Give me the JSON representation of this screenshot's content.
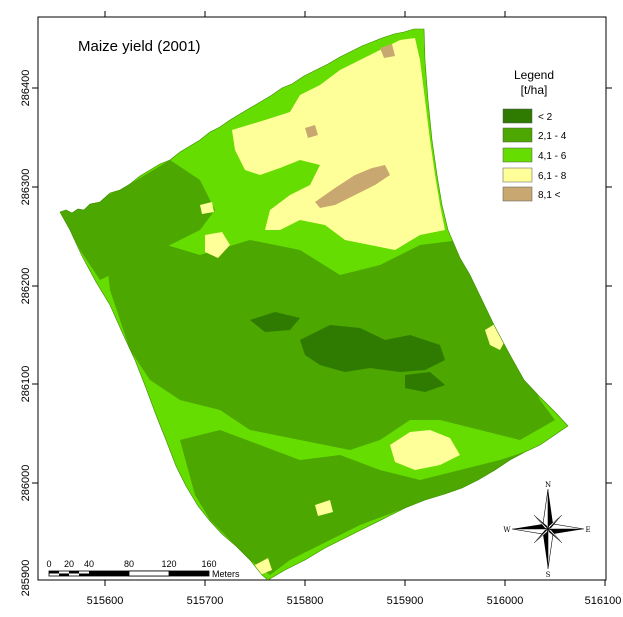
{
  "map": {
    "title": "Maize yield (2001)",
    "x_ticks": [
      "515600",
      "515700",
      "515800",
      "515900",
      "516000",
      "516100"
    ],
    "y_ticks": [
      "286400",
      "286300",
      "286200",
      "286100",
      "286000",
      "285900"
    ],
    "colors": {
      "lt2": "#2f7a00",
      "c2_4": "#4ca700",
      "c4_6": "#66dd00",
      "c6_8": "#ffff99",
      "c8": "#c8a870"
    }
  },
  "legend": {
    "title_line1": "Legend",
    "title_line2": "[t/ha]",
    "items": [
      {
        "label": "< 2",
        "color": "#2f7a00"
      },
      {
        "label": "2,1 - 4",
        "color": "#4ca700"
      },
      {
        "label": "4,1 - 6",
        "color": "#66dd00"
      },
      {
        "label": "6,1 - 8",
        "color": "#ffff99"
      },
      {
        "label": "8,1 <",
        "color": "#c8a870"
      }
    ]
  },
  "scale_bar": {
    "labels": [
      "0",
      "20",
      "40",
      "80",
      "120",
      "160"
    ],
    "unit": "Meters"
  },
  "compass": {
    "n": "N",
    "s": "S",
    "e": "E",
    "w": "W"
  }
}
